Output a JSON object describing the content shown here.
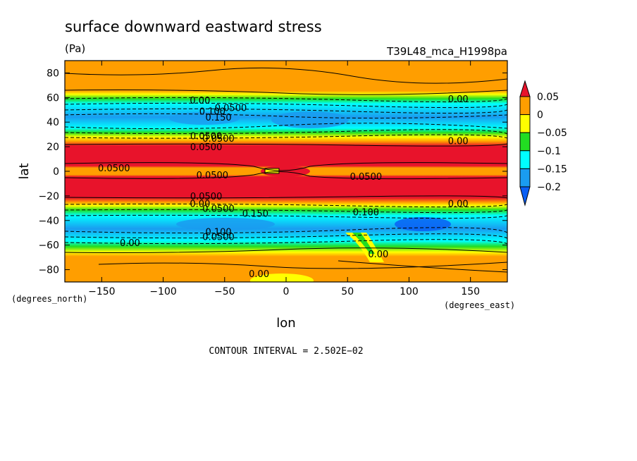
{
  "chart_data": {
    "type": "heatmap",
    "title": "surface downward eastward stress",
    "units": "(Pa)",
    "run_label": "T39L48_mca_H1998pa",
    "xlabel": "lon",
    "ylabel": "lat",
    "x_units": "(degrees_east)",
    "y_units": "(degrees_north)",
    "xlim": [
      -180,
      180
    ],
    "ylim": [
      -90,
      90
    ],
    "x_ticks": [
      -150,
      -100,
      -50,
      0,
      50,
      100,
      150
    ],
    "y_ticks": [
      80,
      60,
      40,
      20,
      0,
      -20,
      -40,
      -60,
      -80
    ],
    "x_tick_labels": [
      "−150",
      "−100",
      "−50",
      "0",
      "50",
      "100",
      "150"
    ],
    "y_tick_labels": [
      "80",
      "60",
      "40",
      "20",
      "0",
      "−20",
      "−40",
      "−60",
      "−80"
    ],
    "contour_interval_text": "CONTOUR INTERVAL = 2.502E−02",
    "colorbar": {
      "levels": [
        0.05,
        0,
        -0.05,
        -0.1,
        -0.15,
        -0.2
      ],
      "labels": [
        "0.05",
        "0",
        "−0.05",
        "−0.1",
        "−0.15",
        "−0.2"
      ],
      "colors": {
        "above_0.05": "#e8132b",
        "0_to_0.05": "#ff9e00",
        "-0.05_to_0": "#ffff00",
        "-0.1_to_-0.05": "#22dd22",
        "-0.15_to_-0.1": "#00ffff",
        "-0.2_to_-0.15": "#1a9cf0",
        "below_-0.2": "#0a5ff5"
      }
    },
    "zonal_bands": [
      {
        "lat_range": [
          65,
          90
        ],
        "value_range": [
          0,
          0.05
        ],
        "color": "orange"
      },
      {
        "lat_range": [
          55,
          65
        ],
        "value_range": [
          -0.05,
          0
        ],
        "color": "yellow"
      },
      {
        "lat_range": [
          30,
          55
        ],
        "value_range": [
          -0.2,
          -0.05
        ],
        "color": "cyan/blue"
      },
      {
        "lat_range": [
          20,
          30
        ],
        "value_range": [
          -0.05,
          0
        ],
        "color": "yellow"
      },
      {
        "lat_range": [
          3,
          20
        ],
        "value_range": [
          0.05,
          0.1
        ],
        "color": "red"
      },
      {
        "lat_range": [
          -3,
          3
        ],
        "value_range": [
          0,
          0.05
        ],
        "color": "orange"
      },
      {
        "lat_range": [
          -20,
          -3
        ],
        "value_range": [
          0.05,
          0.1
        ],
        "color": "red"
      },
      {
        "lat_range": [
          -30,
          -20
        ],
        "value_range": [
          -0.05,
          0
        ],
        "color": "yellow"
      },
      {
        "lat_range": [
          -60,
          -30
        ],
        "value_range": [
          -0.2,
          -0.05
        ],
        "color": "cyan/blue"
      },
      {
        "lat_range": [
          -90,
          -60
        ],
        "value_range": [
          0,
          0.05
        ],
        "color": "orange"
      }
    ],
    "contour_labels": [
      {
        "text": "0.00",
        "lon": -70,
        "lat": 58
      },
      {
        "text": "0.0500",
        "lon": -45,
        "lat": 52
      },
      {
        "text": "0.100",
        "lon": -60,
        "lat": 49
      },
      {
        "text": "0.150",
        "lon": -55,
        "lat": 44
      },
      {
        "text": "0.0500",
        "lon": -65,
        "lat": 29
      },
      {
        "text": "0.0500",
        "lon": -55,
        "lat": 27
      },
      {
        "text": "0.0500",
        "lon": -65,
        "lat": 20
      },
      {
        "text": "0.00",
        "lon": 140,
        "lat": 59
      },
      {
        "text": "0.00",
        "lon": 140,
        "lat": 25
      },
      {
        "text": "0.0500",
        "lon": -140,
        "lat": 3
      },
      {
        "text": "0.0500",
        "lon": -60,
        "lat": -3
      },
      {
        "text": "0.0500",
        "lon": 65,
        "lat": -4
      },
      {
        "text": "0.0500",
        "lon": -65,
        "lat": -20
      },
      {
        "text": "0.00",
        "lon": -70,
        "lat": -26
      },
      {
        "text": "0.0500",
        "lon": -55,
        "lat": -30
      },
      {
        "text": "0.150",
        "lon": -25,
        "lat": -34
      },
      {
        "text": "0.100",
        "lon": 65,
        "lat": -33
      },
      {
        "text": "0.00",
        "lon": 140,
        "lat": -26
      },
      {
        "text": "0.100",
        "lon": -55,
        "lat": -49
      },
      {
        "text": "0.0500",
        "lon": -55,
        "lat": -53
      },
      {
        "text": "0.00",
        "lon": -127,
        "lat": -58
      },
      {
        "text": "0.00",
        "lon": 75,
        "lat": -67
      },
      {
        "text": "0.00",
        "lon": -22,
        "lat": -83
      }
    ]
  }
}
